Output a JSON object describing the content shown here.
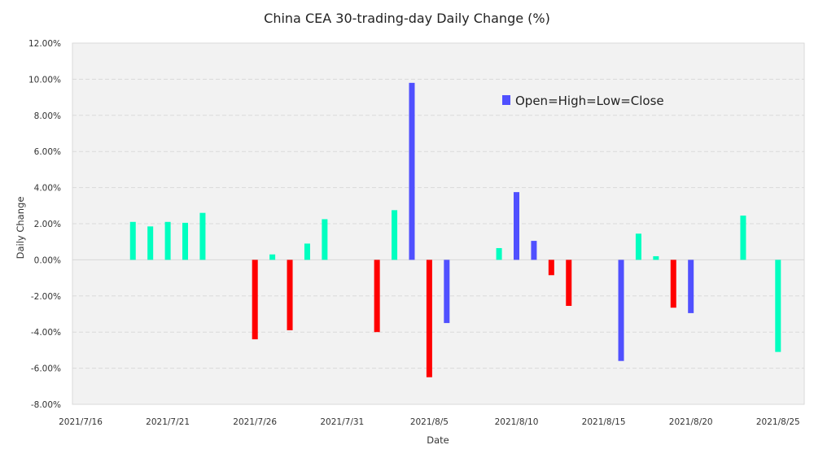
{
  "chart_data": {
    "type": "bar",
    "title": "China CEA 30-trading-day Daily Change (%)",
    "xlabel": "Date",
    "ylabel": "Daily Change",
    "ylim": [
      -8,
      12
    ],
    "y_ticks": [
      -8,
      -6,
      -4,
      -2,
      0,
      2,
      4,
      6,
      8,
      10,
      12
    ],
    "y_tick_labels": [
      "-8.00%",
      "-6.00%",
      "-4.00%",
      "-2.00%",
      "0.00%",
      "2.00%",
      "4.00%",
      "6.00%",
      "8.00%",
      "10.00%",
      "12.00%"
    ],
    "x_range": [
      "2021/7/16",
      "2021/8/27"
    ],
    "x_tick_labels": [
      "2021/7/16",
      "2021/7/21",
      "2021/7/26",
      "2021/7/31",
      "2021/8/5",
      "2021/8/10",
      "2021/8/15",
      "2021/8/20",
      "2021/8/25"
    ],
    "grid": true,
    "legend": {
      "placement": "top-right",
      "entries": [
        {
          "label": "Open=High=Low=Close",
          "color": "#5050FF"
        }
      ]
    },
    "colors": {
      "up": "#00FFC0",
      "down": "#FF0000",
      "flat": "#5050FF"
    },
    "series": [
      {
        "name": "Daily Change",
        "points": [
          {
            "date": "2021/7/19",
            "value": 2.1,
            "kind": "up"
          },
          {
            "date": "2021/7/20",
            "value": 1.85,
            "kind": "up"
          },
          {
            "date": "2021/7/21",
            "value": 2.1,
            "kind": "up"
          },
          {
            "date": "2021/7/22",
            "value": 2.05,
            "kind": "up"
          },
          {
            "date": "2021/7/23",
            "value": 2.6,
            "kind": "up"
          },
          {
            "date": "2021/7/26",
            "value": -4.4,
            "kind": "down"
          },
          {
            "date": "2021/7/27",
            "value": 0.3,
            "kind": "up"
          },
          {
            "date": "2021/7/28",
            "value": -3.9,
            "kind": "down"
          },
          {
            "date": "2021/7/29",
            "value": 0.9,
            "kind": "up"
          },
          {
            "date": "2021/7/30",
            "value": 2.25,
            "kind": "up"
          },
          {
            "date": "2021/8/2",
            "value": -4.0,
            "kind": "down"
          },
          {
            "date": "2021/8/3",
            "value": 2.75,
            "kind": "up"
          },
          {
            "date": "2021/8/4",
            "value": 9.8,
            "kind": "flat"
          },
          {
            "date": "2021/8/5",
            "value": -6.5,
            "kind": "down"
          },
          {
            "date": "2021/8/6",
            "value": -3.5,
            "kind": "flat"
          },
          {
            "date": "2021/8/9",
            "value": 0.65,
            "kind": "up"
          },
          {
            "date": "2021/8/10",
            "value": 3.75,
            "kind": "flat"
          },
          {
            "date": "2021/8/11",
            "value": 1.05,
            "kind": "flat"
          },
          {
            "date": "2021/8/12",
            "value": -0.85,
            "kind": "down"
          },
          {
            "date": "2021/8/13",
            "value": -2.55,
            "kind": "down"
          },
          {
            "date": "2021/8/16",
            "value": -5.6,
            "kind": "flat"
          },
          {
            "date": "2021/8/17",
            "value": 1.45,
            "kind": "up"
          },
          {
            "date": "2021/8/18",
            "value": 0.2,
            "kind": "up"
          },
          {
            "date": "2021/8/19",
            "value": -2.65,
            "kind": "down"
          },
          {
            "date": "2021/8/20",
            "value": -2.95,
            "kind": "flat"
          },
          {
            "date": "2021/8/23",
            "value": 2.45,
            "kind": "up"
          },
          {
            "date": "2021/8/25",
            "value": -5.1,
            "kind": "up"
          }
        ]
      }
    ]
  }
}
